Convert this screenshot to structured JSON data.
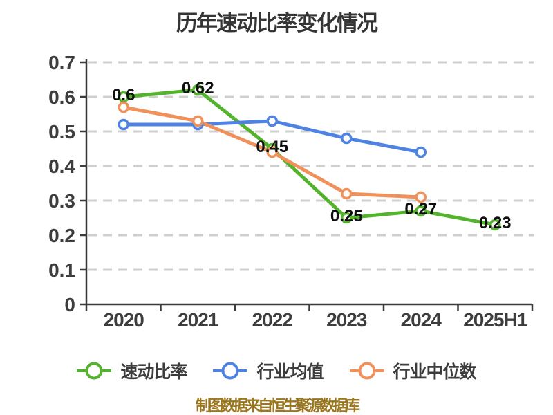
{
  "chart_data": {
    "type": "line",
    "title": "历年速动比率变化情况",
    "source_note": "制图数据来自恒生聚源数据库",
    "categories": [
      "2020",
      "2021",
      "2022",
      "2023",
      "2024",
      "2025H1"
    ],
    "series": [
      {
        "key": "quick-ratio",
        "name": "速动比率",
        "color": "#54b32c",
        "values": [
          0.6,
          0.62,
          0.45,
          0.25,
          0.27,
          0.23
        ],
        "data_labels": [
          "0.6",
          "0.62",
          "0.45",
          "0.25",
          "0.27",
          "0.23"
        ]
      },
      {
        "key": "industry-average",
        "name": "行业均值",
        "color": "#4e83e4",
        "values": [
          0.52,
          0.52,
          0.53,
          0.48,
          0.44,
          null
        ]
      },
      {
        "key": "industry-median",
        "name": "行业中位数",
        "color": "#f0915b",
        "values": [
          0.57,
          0.53,
          0.44,
          0.32,
          0.31,
          null
        ]
      }
    ],
    "ylim": [
      0,
      0.7
    ],
    "ytick_step": 0.1,
    "ytick_labels": [
      "0",
      "0.1",
      "0.2",
      "0.3",
      "0.4",
      "0.5",
      "0.6",
      "0.7"
    ],
    "xlabel": "",
    "ylabel": "",
    "grid": "horizontal-dashed",
    "legend_position": "bottom",
    "marker": "circle-white-fill",
    "colors": {
      "background": "#ffffff",
      "axis": "#3a3a3a",
      "grid": "#cfcfcf",
      "tick_label": "#3d3d3d",
      "data_label": "#0f0f0f",
      "title": "#353535",
      "legend_text": "#3d3d3d",
      "source_note": "#9a771e"
    }
  }
}
